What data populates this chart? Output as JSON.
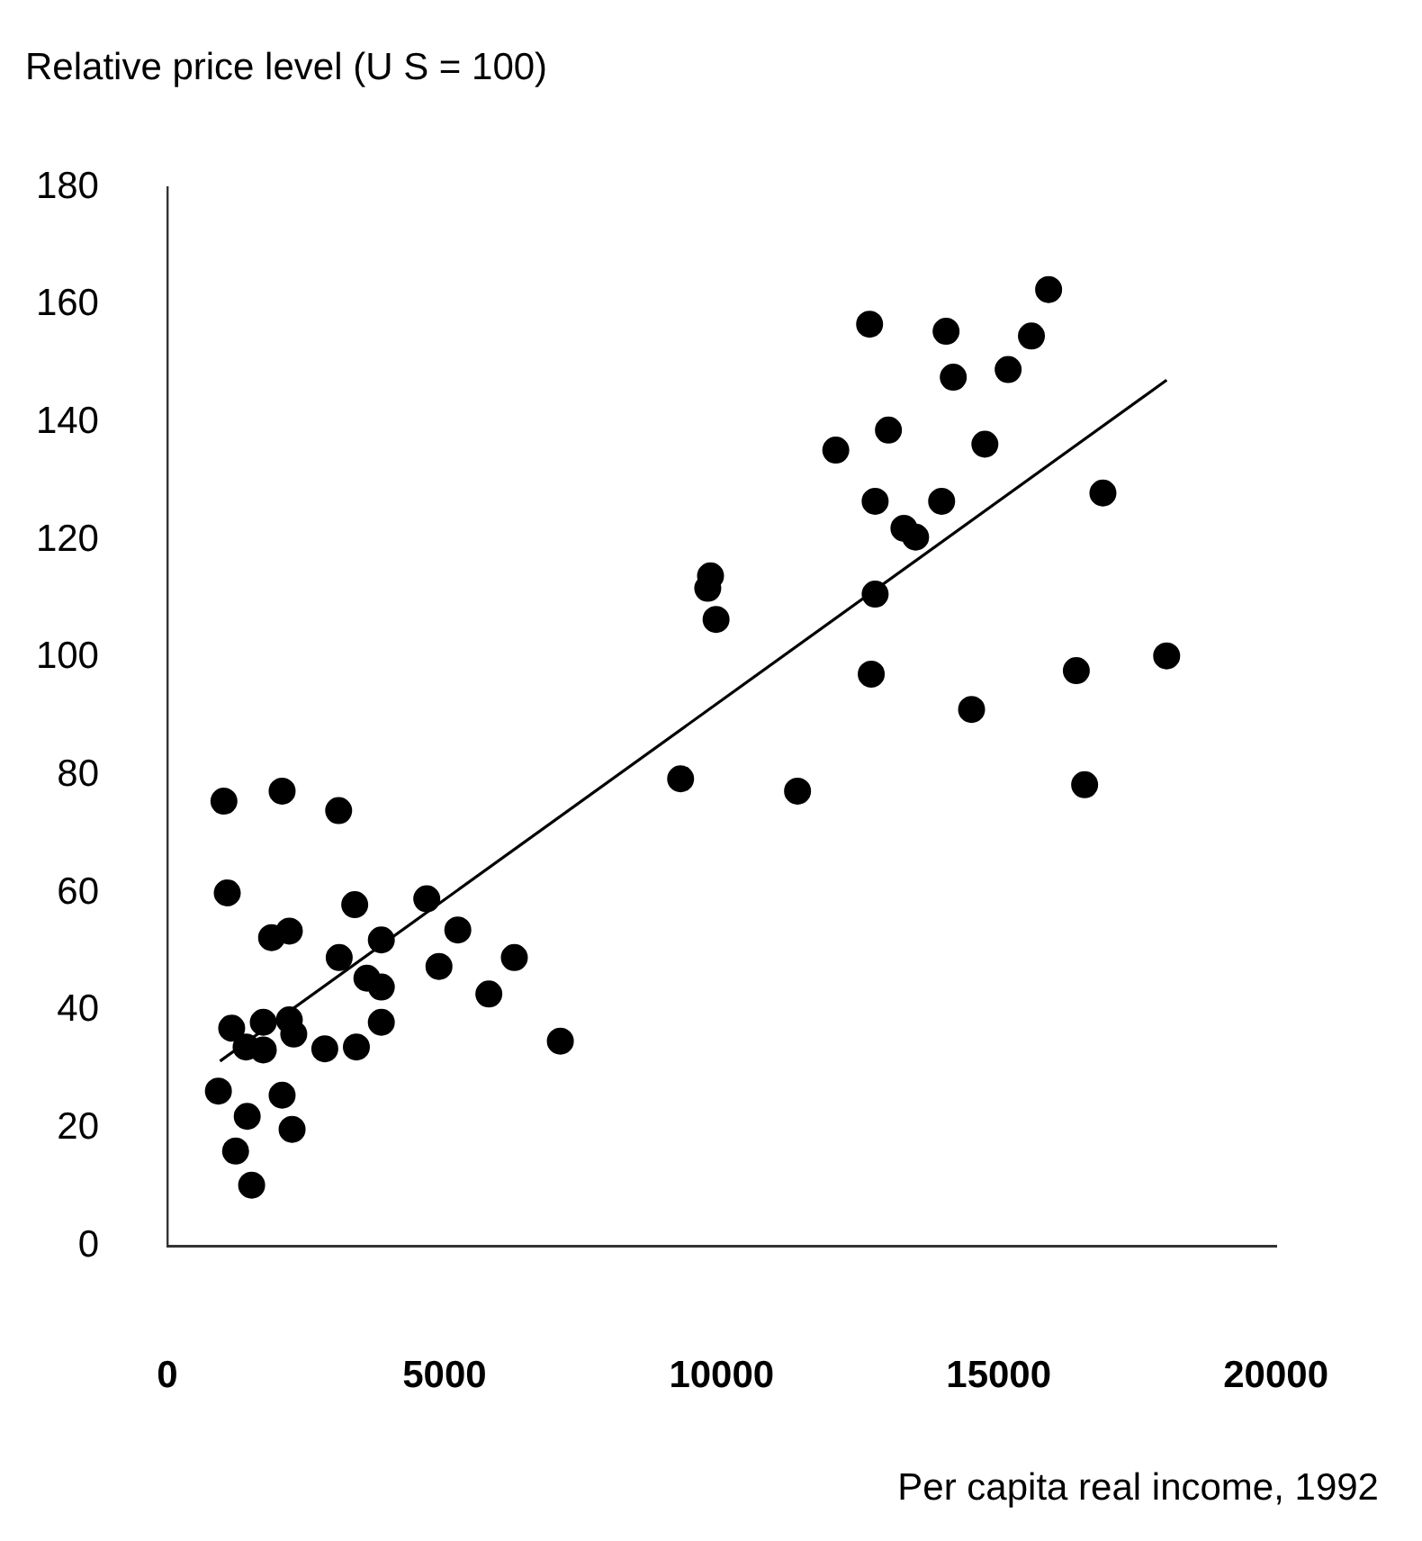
{
  "chart_data": {
    "type": "scatter",
    "ylabel": "Relative price level (U S  = 100)",
    "xlabel": "Per capita real income, 1992",
    "xlim": [
      0,
      20000
    ],
    "xticks": [
      0,
      5000,
      10000,
      15000,
      20000
    ],
    "ylim": [
      0,
      180
    ],
    "yticks": [
      0,
      20,
      40,
      60,
      80,
      100,
      120,
      140,
      160,
      180
    ],
    "series": [
      {
        "marker": "circle",
        "color": "#000000",
        "x": [
          1020,
          2070,
          3090,
          1080,
          3380,
          4680,
          1880,
          2200,
          3860,
          5240,
          6260,
          3100,
          4900,
          3600,
          3860,
          5800,
          3860,
          1160,
          1730,
          2200,
          2280,
          1420,
          1730,
          2840,
          3410,
          7090,
          920,
          2070,
          1440,
          2250,
          1230,
          1520,
          15900,
          12670,
          14050,
          15590,
          14180,
          15170,
          13010,
          12060,
          14750,
          16880,
          12770,
          13970,
          13290,
          13500,
          12770,
          9800,
          9750,
          9900,
          12700,
          16400,
          18030,
          14510,
          9260,
          11370,
          16550
        ],
        "values": [
          75.6,
          77.3,
          74,
          60,
          58,
          59,
          52.4,
          53.5,
          52,
          53.7,
          49,
          49,
          47.5,
          45.5,
          44,
          42.8,
          38,
          37,
          38,
          38.4,
          36,
          33.8,
          33.3,
          33.5,
          33.8,
          34.8,
          26.3,
          25.6,
          22,
          19.8,
          16.1,
          10.3,
          162.6,
          156.7,
          155.5,
          154.7,
          147.7,
          149,
          138.7,
          135.3,
          136.3,
          128,
          126.6,
          126.6,
          122,
          120.5,
          110.8,
          113.9,
          111.8,
          106.5,
          97.2,
          97.8,
          100.3,
          91.2,
          79.4,
          77.3,
          78.4
        ]
      },
      {
        "type": "line",
        "color": "#000000",
        "x": [
          950,
          18030
        ],
        "values": [
          31.4,
          147.2
        ]
      }
    ]
  }
}
